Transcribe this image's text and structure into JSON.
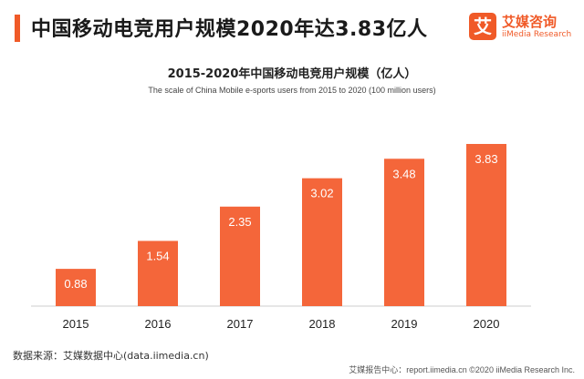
{
  "header": {
    "title": "中国移动电竞用户规模2020年达3.83亿人"
  },
  "brand": {
    "logo_char": "艾",
    "name": "艾媒咨询",
    "subtitle": "iiMedia Research"
  },
  "colors": {
    "accent": "#f05a28",
    "bar": "#f4663a",
    "axis": "#cccccc"
  },
  "chart_data": {
    "type": "bar",
    "title": "2015-2020年中国移动电竞用户规模（亿人）",
    "subtitle": "The scale of China Mobile e-sports users from 2015 to 2020 (100 million users)",
    "categories": [
      "2015",
      "2016",
      "2017",
      "2018",
      "2019",
      "2020"
    ],
    "values": [
      0.88,
      1.54,
      2.35,
      3.02,
      3.48,
      3.83
    ],
    "data_labels": [
      "0.88",
      "1.54",
      "2.35",
      "3.02",
      "3.48",
      "3.83"
    ],
    "xlabel": "",
    "ylabel": "",
    "ylim": [
      0,
      3.83
    ],
    "grid": false,
    "legend": "none"
  },
  "source": "数据来源：艾媒数据中心(data.iimedia.cn)",
  "footer": "艾媒报告中心：report.iimedia.cn  ©2020  iiMedia Research  Inc."
}
